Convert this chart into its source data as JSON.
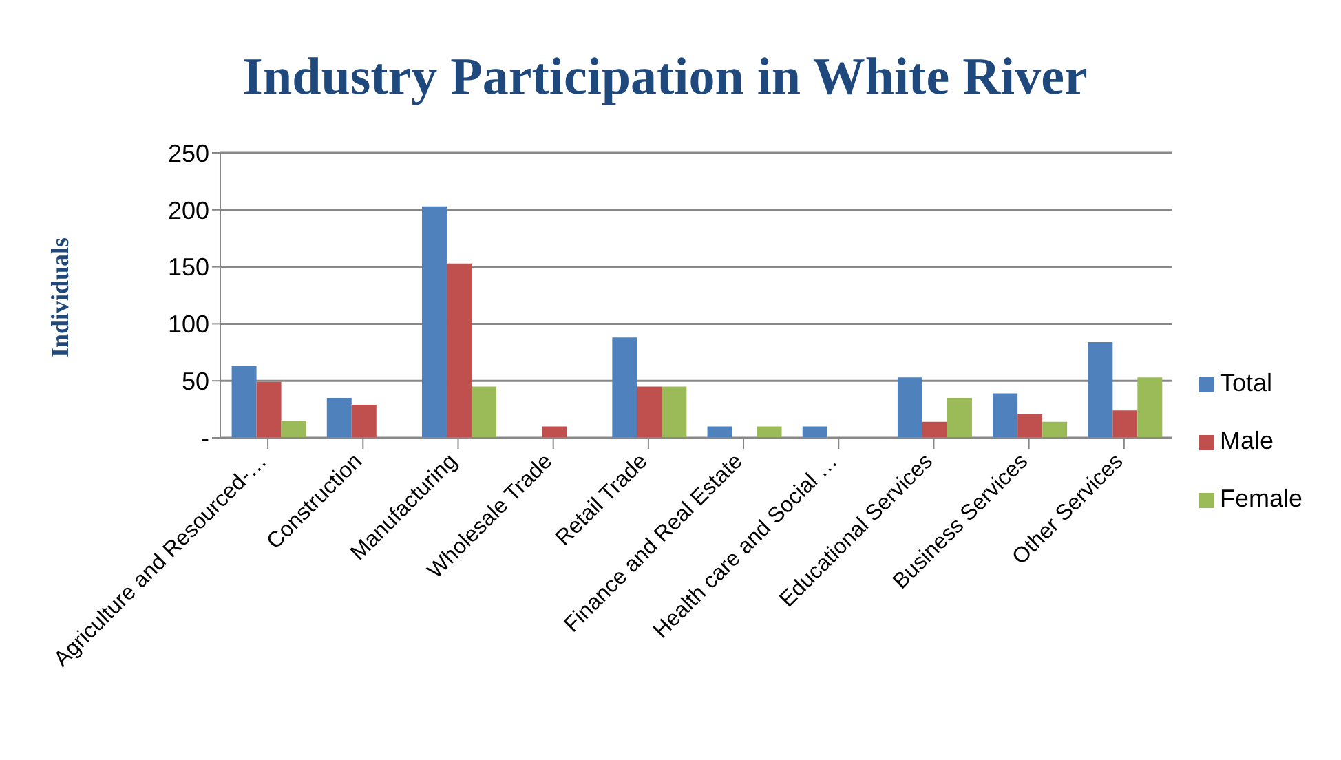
{
  "chart_data": {
    "type": "bar",
    "title": "Industry Participation in White River",
    "ylabel": "Individuals",
    "categories": [
      "Agriculture and Resourced-…",
      "Construction",
      "Manufacturing",
      "Wholesale Trade",
      "Retail Trade",
      "Finance and Real Estate",
      "Health care and Social …",
      "Educational Services",
      "Business Services",
      "Other Services"
    ],
    "series": [
      {
        "name": "Total",
        "color": "#4f81bd",
        "values": [
          63,
          35,
          203,
          0,
          88,
          10,
          10,
          53,
          39,
          84
        ]
      },
      {
        "name": "Male",
        "color": "#c0504d",
        "values": [
          49,
          29,
          153,
          10,
          45,
          0,
          0,
          14,
          21,
          24
        ]
      },
      {
        "name": "Female",
        "color": "#9bbb59",
        "values": [
          15,
          0,
          45,
          0,
          45,
          10,
          0,
          35,
          14,
          53
        ]
      }
    ],
    "ylim": [
      0,
      250
    ],
    "yticks": [
      {
        "value": 0,
        "label": "-"
      },
      50,
      100,
      150,
      200,
      250
    ],
    "grid": "y",
    "legend": "right"
  }
}
